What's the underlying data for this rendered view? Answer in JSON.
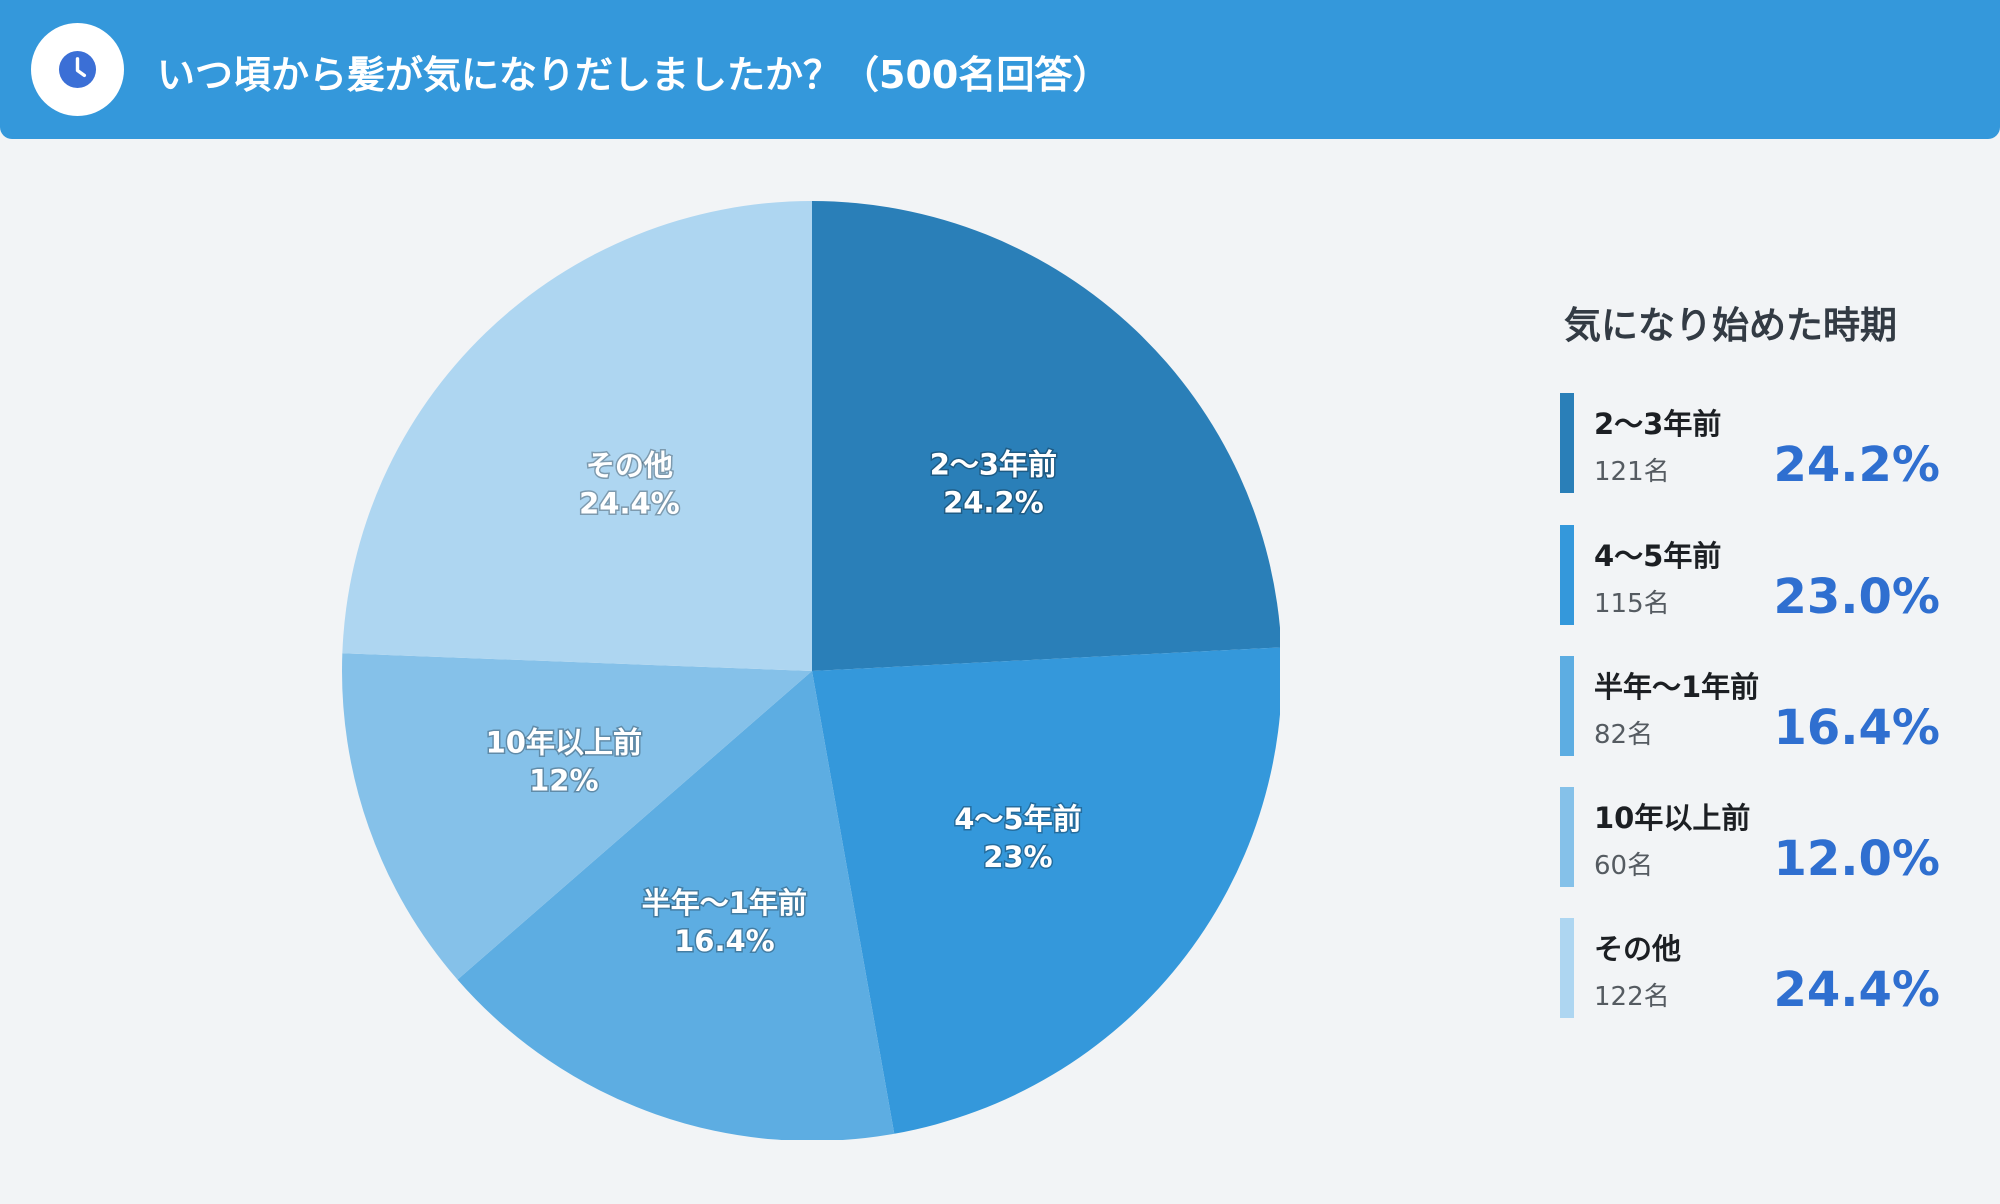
{
  "header": {
    "title": "いつ頃から髪が気になりだしましたか？（500名回答）",
    "icon": "clock-icon"
  },
  "colors": {
    "header_bg": "#3498db",
    "percent_text": "#2f6fd0",
    "slice_colors": [
      "#2a7fb8",
      "#3498db",
      "#5dade2",
      "#85c1e9",
      "#aed6f1"
    ]
  },
  "legend": {
    "title": "気になり始めた時期",
    "items": [
      {
        "label": "2〜3年前",
        "count": "121名",
        "percent": "24.2%"
      },
      {
        "label": "4〜5年前",
        "count": "115名",
        "percent": "23.0%"
      },
      {
        "label": "半年〜1年前",
        "count": "82名",
        "percent": "16.4%"
      },
      {
        "label": "10年以上前",
        "count": "60名",
        "percent": "12.0%"
      },
      {
        "label": "その他",
        "count": "122名",
        "percent": "24.4%"
      }
    ]
  },
  "chart_data": {
    "type": "pie",
    "title": "いつ頃から髪が気になりだしましたか？（500名回答）",
    "categories": [
      "2〜3年前",
      "4〜5年前",
      "半年〜1年前",
      "10年以上前",
      "その他"
    ],
    "values": [
      24.2,
      23.0,
      16.4,
      12.0,
      24.4
    ],
    "counts": [
      121,
      115,
      82,
      60,
      122
    ],
    "slice_labels": [
      "24.2%",
      "23%",
      "16.4%",
      "12%",
      "24.4%"
    ],
    "start_angle": "12 o'clock",
    "direction": "clockwise",
    "legend_title": "気になり始めた時期",
    "legend_position": "right"
  }
}
